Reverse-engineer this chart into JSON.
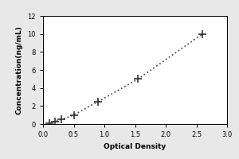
{
  "x_data": [
    0.1,
    0.2,
    0.3,
    0.5,
    0.9,
    1.55,
    2.6
  ],
  "y_data": [
    0.1,
    0.3,
    0.5,
    1.0,
    2.5,
    5.0,
    10.0
  ],
  "xlabel": "Optical Density",
  "ylabel": "Concentration(ng/mL)",
  "xlim": [
    0,
    3
  ],
  "ylim": [
    0,
    12
  ],
  "xticks": [
    0,
    0.5,
    1,
    1.5,
    2,
    2.5,
    3
  ],
  "yticks": [
    0,
    2,
    4,
    6,
    8,
    10,
    12
  ],
  "marker": "+",
  "marker_color": "#333333",
  "line_color": "#555555",
  "marker_size": 7,
  "marker_edge_width": 1.2,
  "line_width": 1.3,
  "fig_bg_color": "#e8e8e8",
  "plot_bg_color": "#ffffff",
  "label_fontsize": 6.5,
  "tick_fontsize": 6,
  "label_fontweight": "bold"
}
